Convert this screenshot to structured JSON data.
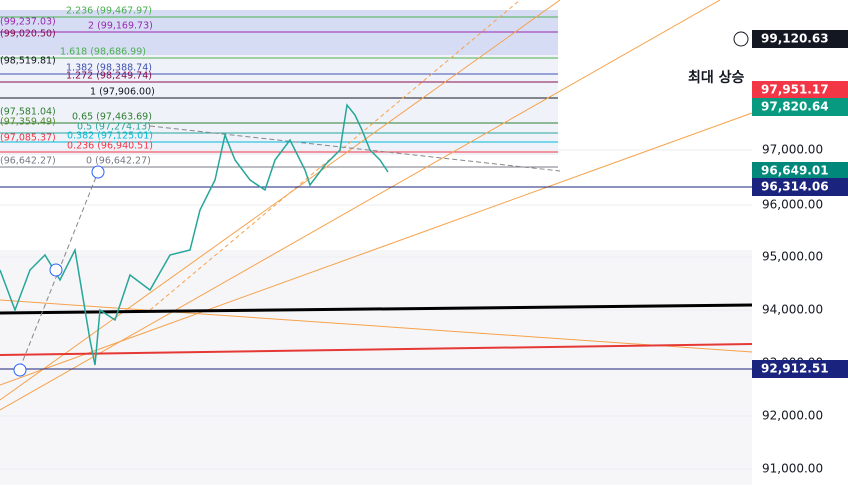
{
  "price_axis": {
    "ticks": [
      "97,000.00",
      "96,000.00",
      "95,000.00",
      "94,000.00",
      "93,000.00",
      "92,000.00",
      "91,000.00"
    ]
  },
  "price_tags": [
    "99,120.63",
    "97,951.17",
    "97,820.64",
    "96,649.01",
    "96,314.06",
    "92,912.51"
  ],
  "annotation": "최대 상승",
  "fib_levels": [
    "2.236 (99,467.97)",
    "2 (99,169.73)",
    "1.618 (98,686.99)",
    "1.382 (98,388.74)",
    "1.272 (98,249.74)",
    "1 (97,906.00)",
    "0.65 (97,463.69)",
    "0.5 (97,274.13)",
    "0.382 (97,125.01)",
    "0.236 (96,940.51)",
    "0 (96,642.27)"
  ],
  "left_labels": [
    "(99,237.03)",
    "(99,020.50)",
    "(98,519.81)",
    "(97,581.04)",
    "(97,359.49)",
    "(97,085.37)",
    "(96,642.27)"
  ]
}
